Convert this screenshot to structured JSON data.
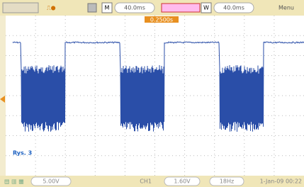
{
  "toolbar": {
    "mode_main": "M",
    "main_timebase": "40.0ms",
    "mode_window": "W",
    "window_timebase": "40.0ms",
    "menu": "Menu"
  },
  "trigger_position": "0.2500s",
  "caption": "Rys. 3",
  "status": {
    "channel_scale": "5.00V",
    "channel": "CH1",
    "trigger_level": "1.60V",
    "frequency": "18Hz",
    "datetime": "1-Jan-09 00:22"
  }
}
